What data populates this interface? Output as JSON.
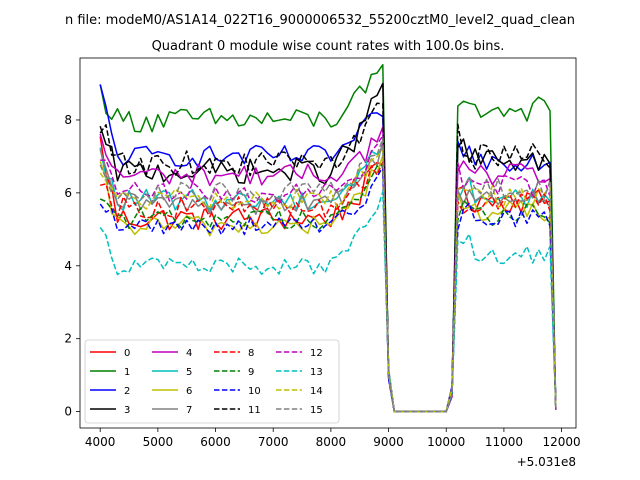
{
  "chart_data": {
    "type": "line",
    "suptitle": "n file: modeM0/AS1A14_022T16_9000006532_55200cztM0_level2_quad_clean",
    "title": "Quadrant 0 module wise count rates with 100.0s bins.",
    "xlabel": "",
    "ylabel": "",
    "x_offset_label": "+5.031e8",
    "xlim": [
      3650,
      12250
    ],
    "ylim": [
      -0.45,
      9.7
    ],
    "xticks": [
      4000,
      5000,
      6000,
      7000,
      8000,
      9000,
      10000,
      11000,
      12000
    ],
    "xtick_labels": [
      "4000",
      "5000",
      "6000",
      "7000",
      "8000",
      "9000",
      "10000",
      "11000",
      "12000"
    ],
    "yticks": [
      0,
      2,
      4,
      6,
      8
    ],
    "ytick_labels": [
      "0",
      "2",
      "4",
      "6",
      "8"
    ],
    "legend_position": "lower-left",
    "segments": [
      {
        "name": "active_1",
        "x_start": 4000,
        "x_end": 8900
      },
      {
        "name": "gap_drop",
        "x": [
          8900,
          9000,
          9100,
          10000,
          10100,
          10200
        ]
      },
      {
        "name": "active_2",
        "x_start": 10200,
        "x_end": 11800
      }
    ],
    "series": [
      {
        "name": "0",
        "color": "#ff0000",
        "dash": "solid",
        "level1": 5.3,
        "level2": 5.8,
        "amp": 0.35,
        "start": 7.4,
        "peak": 6.8
      },
      {
        "name": "1",
        "color": "#008000",
        "dash": "solid",
        "level1": 8.0,
        "level2": 8.3,
        "amp": 0.35,
        "start": 8.8,
        "peak": 9.3
      },
      {
        "name": "2",
        "color": "#0000ff",
        "dash": "solid",
        "level1": 7.0,
        "level2": 6.9,
        "amp": 0.3,
        "start": 8.8,
        "peak": 8.3
      },
      {
        "name": "3",
        "color": "#000000",
        "dash": "solid",
        "level1": 6.6,
        "level2": 6.9,
        "amp": 0.35,
        "start": 7.6,
        "peak": 9.0
      },
      {
        "name": "4",
        "color": "#bf00bf",
        "dash": "solid",
        "level1": 6.5,
        "level2": 6.5,
        "amp": 0.3,
        "start": 7.4,
        "peak": 7.6
      },
      {
        "name": "5",
        "color": "#00bfbf",
        "dash": "solid",
        "level1": 5.8,
        "level2": 5.9,
        "amp": 0.3,
        "start": 7.0,
        "peak": 7.4
      },
      {
        "name": "6",
        "color": "#bfbf00",
        "dash": "solid",
        "level1": 5.1,
        "level2": 5.5,
        "amp": 0.3,
        "start": 6.6,
        "peak": 7.0
      },
      {
        "name": "7",
        "color": "#808080",
        "dash": "solid",
        "level1": 5.7,
        "level2": 5.8,
        "amp": 0.3,
        "start": 6.9,
        "peak": 7.2
      },
      {
        "name": "8",
        "color": "#ff0000",
        "dash": "dashed",
        "level1": 5.6,
        "level2": 5.7,
        "amp": 0.3,
        "start": 6.5,
        "peak": 7.0
      },
      {
        "name": "9",
        "color": "#008000",
        "dash": "dashed",
        "level1": 5.3,
        "level2": 5.4,
        "amp": 0.3,
        "start": 6.1,
        "peak": 6.7
      },
      {
        "name": "10",
        "color": "#0000ff",
        "dash": "dashed",
        "level1": 5.1,
        "level2": 5.3,
        "amp": 0.25,
        "start": 5.9,
        "peak": 6.5
      },
      {
        "name": "11",
        "color": "#000000",
        "dash": "dashed",
        "level1": 6.8,
        "level2": 7.0,
        "amp": 0.35,
        "start": 7.9,
        "peak": 8.6
      },
      {
        "name": "12",
        "color": "#bf00bf",
        "dash": "dashed",
        "level1": 6.0,
        "level2": 6.2,
        "amp": 0.3,
        "start": 7.1,
        "peak": 7.5
      },
      {
        "name": "13",
        "color": "#00bfbf",
        "dash": "dashed",
        "level1": 4.0,
        "level2": 4.3,
        "amp": 0.25,
        "start": 5.2,
        "peak": 5.8
      },
      {
        "name": "14",
        "color": "#bfbf00",
        "dash": "dashed",
        "level1": 5.8,
        "level2": 5.9,
        "amp": 0.3,
        "start": 6.7,
        "peak": 7.3
      },
      {
        "name": "15",
        "color": "#808080",
        "dash": "dashed",
        "level1": 6.0,
        "level2": 6.1,
        "amp": 0.3,
        "start": 6.9,
        "peak": 7.4
      }
    ]
  }
}
